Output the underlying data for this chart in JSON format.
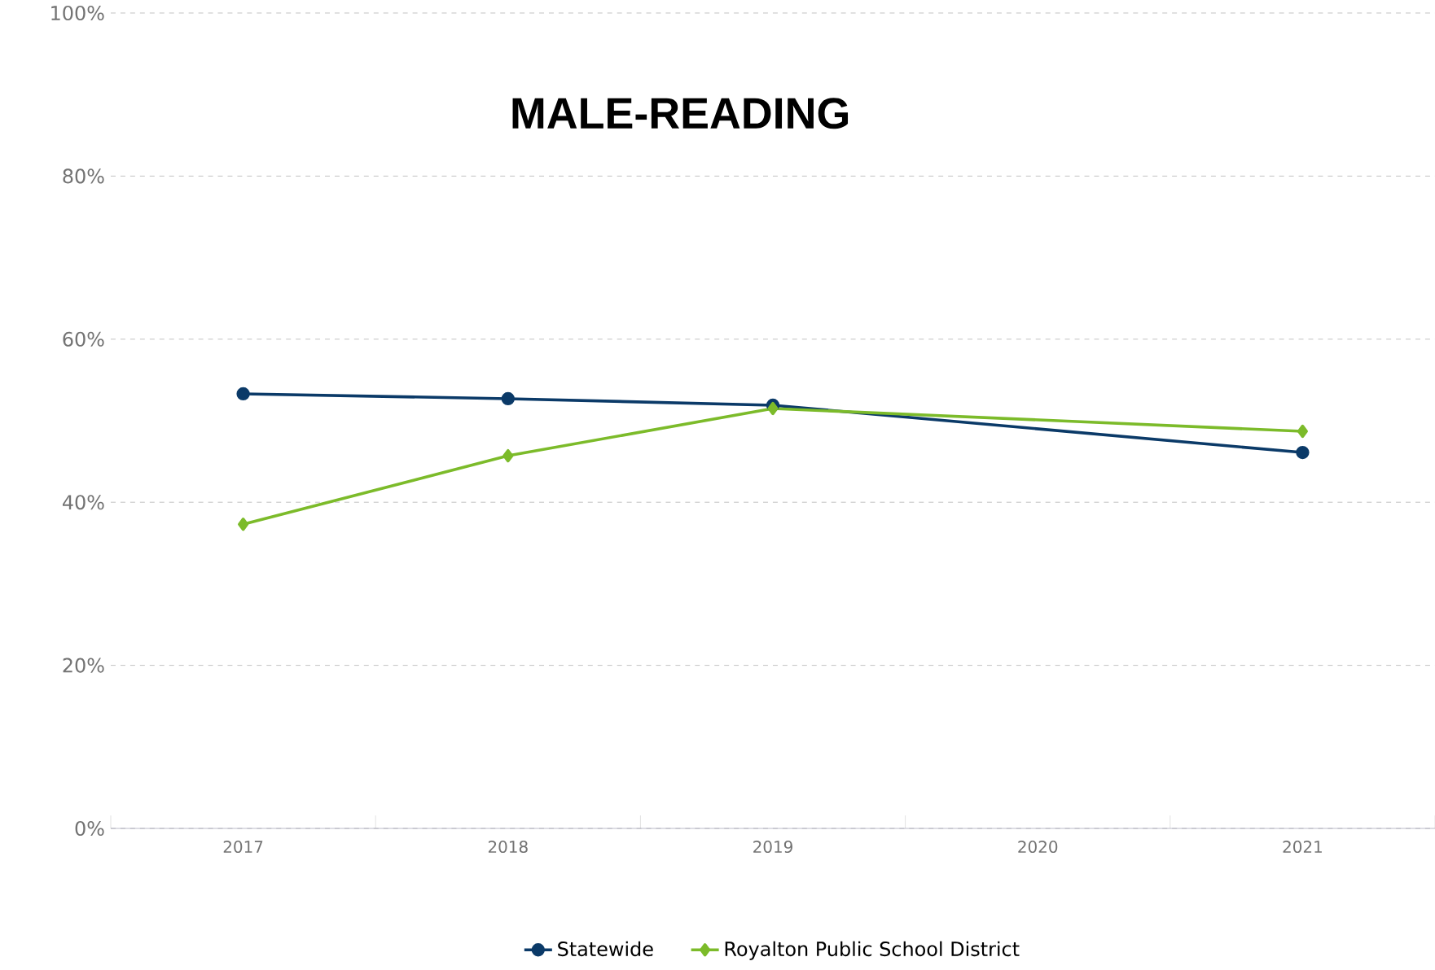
{
  "chart_data": {
    "type": "line",
    "title": "MALE-READING",
    "categories": [
      "2017",
      "2018",
      "2019",
      "2020",
      "2021"
    ],
    "series": [
      {
        "name": "Statewide",
        "color": "#0b3a68",
        "marker": "circle",
        "values": [
          53.3,
          52.7,
          51.9,
          null,
          46.1
        ]
      },
      {
        "name": "Royalton Public School District",
        "color": "#7cbb2a",
        "marker": "diamond",
        "values": [
          37.3,
          45.7,
          51.5,
          null,
          48.7
        ]
      }
    ],
    "ylim": [
      0,
      100
    ],
    "yticks": [
      {
        "value": 0,
        "label": "0%"
      },
      {
        "value": 20,
        "label": "20%"
      },
      {
        "value": 40,
        "label": "40%"
      },
      {
        "value": 60,
        "label": "60%"
      },
      {
        "value": 80,
        "label": "80%"
      },
      {
        "value": 100,
        "label": "100%"
      }
    ],
    "grid": "y",
    "legend": "bottom",
    "line_style": "solid"
  }
}
